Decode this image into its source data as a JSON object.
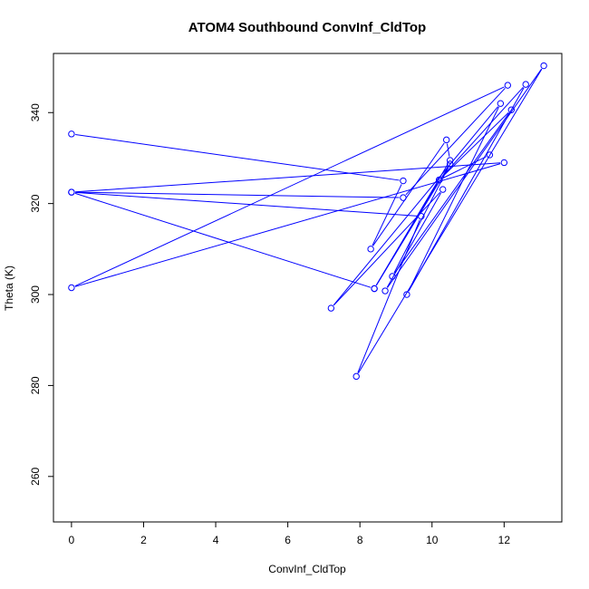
{
  "chart_data": {
    "type": "line",
    "title": "ATOM4 Southbound ConvInf_CldTop",
    "xlabel": "ConvInf_CldTop",
    "ylabel": "Theta (K)",
    "xlim": [
      -0.5,
      13.6
    ],
    "ylim": [
      250,
      353
    ],
    "x_ticks": [
      0,
      2,
      4,
      6,
      8,
      10,
      12
    ],
    "y_ticks": [
      260,
      280,
      300,
      320,
      340
    ],
    "grid": false,
    "legend": "none",
    "series": [
      {
        "color": "#0000ff",
        "marker": "open-circle",
        "points": [
          {
            "x": 0,
            "y": 335.3
          },
          {
            "x": 9.2,
            "y": 325.0
          },
          {
            "x": 8.3,
            "y": 310.0
          },
          {
            "x": 10.4,
            "y": 334.0
          },
          {
            "x": 10.5,
            "y": 329.5
          },
          {
            "x": 8.4,
            "y": 301.3
          },
          {
            "x": 10.2,
            "y": 325.2
          },
          {
            "x": 12.6,
            "y": 346.2
          },
          {
            "x": 9.3,
            "y": 300.0
          },
          {
            "x": 11.9,
            "y": 342.0
          },
          {
            "x": 7.2,
            "y": 297.0
          },
          {
            "x": 10.3,
            "y": 323.1
          },
          {
            "x": 8.7,
            "y": 300.8
          },
          {
            "x": 13.1,
            "y": 350.3
          },
          {
            "x": 7.9,
            "y": 282.0
          },
          {
            "x": 9.7,
            "y": 317.2
          },
          {
            "x": 0,
            "y": 322.5
          },
          {
            "x": 9.2,
            "y": 321.3
          },
          {
            "x": 12.1,
            "y": 346.0
          },
          {
            "x": 0,
            "y": 301.5
          },
          {
            "x": 12.0,
            "y": 329.0
          },
          {
            "x": 0,
            "y": 322.5
          },
          {
            "x": 8.4,
            "y": 301.3
          },
          {
            "x": 10.5,
            "y": 328.7
          },
          {
            "x": 8.9,
            "y": 304.0
          },
          {
            "x": 12.2,
            "y": 340.6
          },
          {
            "x": 10.2,
            "y": 325.2
          },
          {
            "x": 11.6,
            "y": 330.7
          }
        ]
      }
    ]
  }
}
